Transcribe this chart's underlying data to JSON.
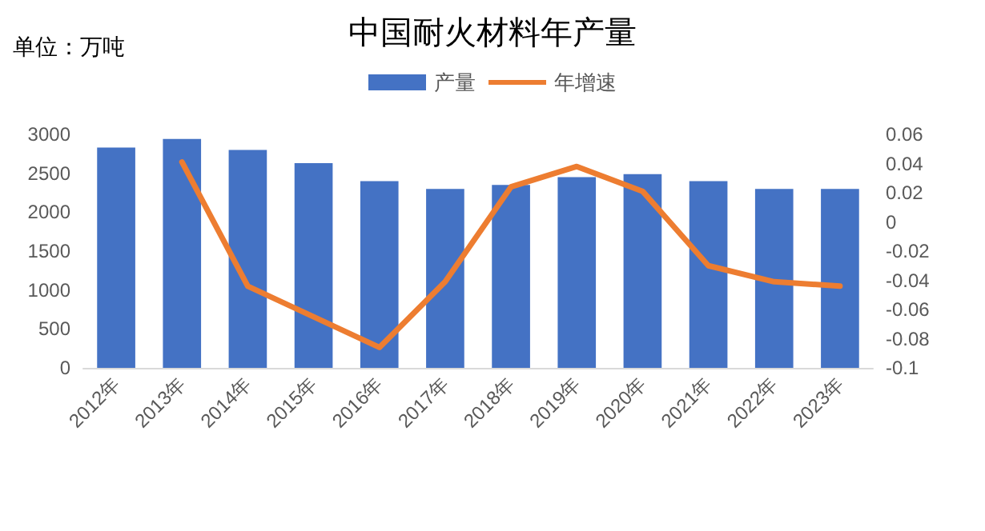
{
  "chart_data": {
    "type": "bar",
    "title": "中国耐火材料年产量",
    "annotations": [
      "单位：万吨"
    ],
    "categories": [
      "2012年",
      "2013年",
      "2014年",
      "2015年",
      "2016年",
      "2017年",
      "2018年",
      "2019年",
      "2020年",
      "2021年",
      "2022年",
      "2023年"
    ],
    "series": [
      {
        "name": "产量",
        "color": "#4472c4",
        "values": [
          2830,
          2940,
          2800,
          2630,
          2400,
          2300,
          2350,
          2450,
          2490,
          2400,
          2300,
          2300
        ]
      },
      {
        "name": "年增速",
        "type": "line",
        "axis": "y2",
        "color": "#ed7d31",
        "values": [
          null,
          0.041,
          -0.044,
          -0.065,
          -0.086,
          -0.041,
          0.024,
          0.038,
          0.021,
          -0.03,
          -0.041,
          -0.044
        ]
      }
    ],
    "ylim": [
      0,
      3000
    ],
    "yticks": [
      0,
      500,
      1000,
      1500,
      2000,
      2500,
      3000
    ],
    "y2lim": [
      -0.1,
      0.06
    ],
    "y2ticks": [
      -0.1,
      -0.08,
      -0.06,
      -0.04,
      -0.02,
      0,
      0.02,
      0.04,
      0.06
    ],
    "legend": "top",
    "grid": false,
    "marker": "none",
    "line_style": "solid"
  }
}
